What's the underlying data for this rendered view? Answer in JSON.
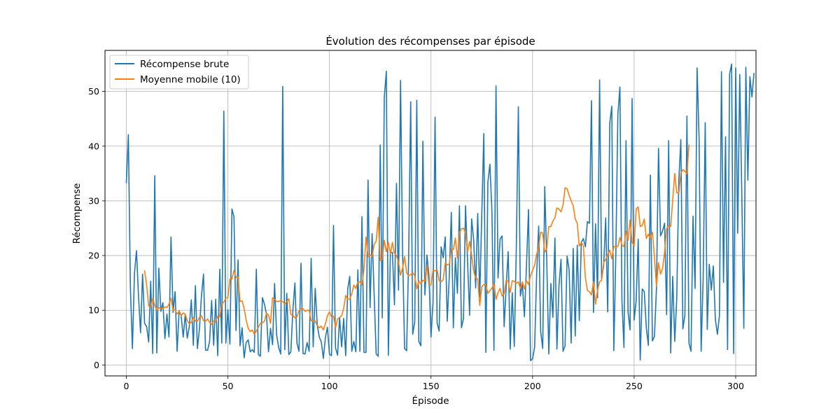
{
  "chart_data": {
    "type": "line",
    "title": "Évolution des récompenses par épisode",
    "xlabel": "Épisode",
    "ylabel": "Récompense",
    "xlim": [
      -10.5,
      310
    ],
    "ylim": [
      -2,
      57.5
    ],
    "x_ticks": [
      0,
      50,
      100,
      150,
      200,
      250,
      300
    ],
    "y_ticks": [
      0,
      10,
      20,
      30,
      40,
      50
    ],
    "grid": true,
    "legend_position": "upper left",
    "series": [
      {
        "name": "Récompense brute",
        "color": "#1f77b4",
        "x_start": 0,
        "values": [
          33.3,
          42.1,
          14.2,
          3.0,
          16.7,
          20.9,
          12.6,
          5.9,
          16.6,
          7.6,
          7.0,
          4.2,
          15.3,
          2.1,
          34.6,
          2.2,
          17.7,
          9.8,
          11.4,
          4.8,
          9.3,
          5.1,
          23.4,
          9.6,
          13.4,
          2.5,
          9.9,
          9.0,
          5.1,
          9.2,
          4.9,
          7.0,
          11.9,
          3.6,
          14.5,
          3.0,
          6.6,
          12.7,
          16.6,
          2.7,
          2.7,
          4.3,
          11.8,
          3.6,
          12.0,
          1.7,
          17.5,
          4.0,
          46.4,
          4.0,
          10.1,
          3.8,
          28.5,
          27.1,
          6.3,
          19.2,
          3.5,
          6.8,
          1.3,
          4.1,
          4.6,
          2.4,
          2.8,
          2.3,
          17.5,
          1.9,
          1.6,
          12.3,
          11.1,
          9.3,
          2.4,
          6.7,
          3.7,
          14.9,
          5.5,
          3.2,
          2.0,
          50.9,
          2.8,
          13.1,
          1.9,
          2.4,
          10.1,
          15.0,
          4.0,
          2.5,
          18.6,
          2.1,
          2.0,
          4.1,
          2.5,
          19.5,
          3.3,
          14.0,
          7.3,
          5.1,
          4.2,
          1.2,
          5.0,
          6.9,
          2.0,
          1.7,
          25.5,
          3.1,
          1.8,
          8.7,
          3.3,
          8.5,
          1.7,
          13.9,
          16.2,
          2.5,
          4.3,
          2.4,
          17.4,
          2.5,
          27.1,
          2.3,
          2.3,
          33.8,
          10.5,
          24.0,
          13.0,
          2.0,
          1.6,
          40.2,
          8.6,
          48.9,
          53.7,
          1.8,
          20.5,
          20.6,
          11.0,
          33.2,
          13.7,
          52.0,
          20.9,
          3.0,
          2.6,
          19.8,
          48.1,
          5.6,
          7.9,
          48.4,
          4.3,
          3.5,
          40.9,
          12.8,
          20.1,
          16.3,
          5.1,
          11.5,
          45.3,
          7.7,
          6.2,
          21.6,
          19.6,
          23.4,
          8.0,
          16.2,
          27.9,
          6.8,
          19.6,
          13.1,
          29.1,
          6.8,
          8.5,
          29.1,
          18.9,
          9.1,
          26.7,
          22.9,
          14.1,
          27.7,
          12.4,
          27.6,
          42.3,
          2.3,
          33.4,
          36.7,
          28.0,
          2.7,
          51.0,
          15.9,
          23.0,
          23.6,
          7.0,
          14.3,
          20.7,
          2.9,
          13.2,
          3.4,
          21.4,
          47.2,
          12.6,
          14.7,
          8.8,
          18.2,
          28.4,
          0.8,
          1.1,
          3.2,
          16.4,
          25.4,
          6.1,
          3.0,
          32.6,
          18.7,
          2.0,
          14.9,
          8.7,
          23.2,
          2.9,
          14.5,
          19.3,
          2.5,
          3.5,
          19.9,
          17.4,
          4.0,
          21.3,
          5.3,
          21.9,
          8.1,
          22.4,
          23.1,
          21.6,
          26.2,
          25.9,
          48.3,
          9.6,
          25.8,
          12.3,
          52.1,
          15.7,
          18.1,
          26.9,
          9.7,
          44.2,
          47.3,
          2.6,
          20.4,
          45.8,
          50.8,
          11.7,
          3.2,
          41.0,
          9.7,
          6.4,
          48.7,
          8.2,
          11.7,
          23.0,
          0.9,
          13.9,
          13.4,
          6.8,
          3.6,
          34.7,
          4.4,
          5.2,
          14.0,
          39.6,
          23.6,
          24.5,
          25.9,
          9.2,
          41.0,
          2.2,
          16.2,
          4.3,
          12.3,
          33.7,
          41.2,
          6.6,
          9.1,
          45.5,
          4.0,
          2.5,
          27.2,
          14.0,
          54.3,
          41.1,
          2.5,
          16.1,
          44.3,
          6.5,
          18.4,
          13.7,
          18.1,
          8.3,
          5.6,
          9.0,
          53.6,
          15.1,
          41.7,
          2.8,
          53.2,
          55.0,
          2.1,
          54.3,
          24.1,
          53.1,
          31.4,
          6.7,
          54.4,
          33.8,
          52.7,
          49.0,
          53.3
        ]
      },
      {
        "name": "Moyenne mobile (10)",
        "color": "#ff7f0e",
        "x_start": 9,
        "values": [
          17.2,
          14.6,
          10.8,
          10.5,
          12.2,
          10.9,
          10.0,
          10.5,
          10.3,
          10.3,
          10.6,
          10.5,
          11.1,
          12.2,
          10.0,
          10.1,
          9.3,
          9.8,
          9.0,
          9.5,
          9.3,
          8.1,
          7.5,
          7.8,
          8.7,
          8.0,
          8.0,
          8.7,
          9.0,
          8.1,
          8.0,
          8.4,
          7.8,
          7.4,
          8.0,
          7.9,
          8.9,
          8.8,
          11.1,
          11.5,
          12.2,
          12.3,
          15.7,
          15.7,
          17.3,
          16.0,
          16.1,
          11.6,
          11.7,
          10.3,
          8.2,
          6.7,
          6.1,
          6.4,
          5.6,
          6.2,
          6.9,
          7.6,
          7.7,
          8.0,
          9.5,
          9.1,
          7.6,
          12.3,
          12.0,
          11.6,
          11.6,
          11.8,
          11.6,
          11.1,
          11.6,
          12.1,
          9.2,
          9.1,
          8.6,
          8.8,
          9.9,
          10.3,
          10.3,
          9.8,
          10.0,
          10.0,
          8.1,
          8.0,
          8.0,
          7.2,
          6.8,
          7.1,
          6.4,
          7.5,
          9.0,
          9.7,
          8.8,
          8.9,
          6.8,
          8.4,
          8.7,
          9.0,
          10.3,
          12.7,
          12.0,
          12.1,
          13.0,
          14.6,
          14.0,
          15.2,
          15.2,
          14.6,
          17.5,
          23.4,
          19.8,
          20.1,
          19.8,
          22.0,
          22.6,
          27.0,
          19.1,
          19.3,
          22.8,
          20.7,
          22.4,
          20.3,
          22.4,
          20.4,
          20.0,
          18.8,
          16.4,
          17.7,
          19.8,
          16.8,
          16.3,
          16.5,
          16.9,
          16.3,
          13.9,
          15.4,
          14.8,
          15.5,
          15.3,
          18.2,
          14.6,
          14.6,
          17.3,
          17.2,
          17.4,
          15.4,
          15.2,
          15.6,
          18.6,
          18.3,
          18.4,
          21.2,
          21.1,
          23.2,
          19.5,
          24.2,
          24.9,
          25.0,
          24.1,
          20.7,
          22.6,
          20.1,
          17.1,
          15.9,
          15.7,
          10.9,
          14.3,
          14.7,
          14.7,
          13.1,
          13.6,
          14.0,
          14.9,
          12.0,
          13.2,
          14.0,
          12.6,
          13.0,
          15.5,
          15.3,
          13.3,
          15.4,
          15.3,
          14.9,
          15.2,
          14.0,
          15.2,
          13.9,
          15.4,
          14.7,
          16.3,
          17.3,
          18.2,
          20.2,
          21.6,
          24.3,
          24.1,
          20.6,
          21.3,
          25.3,
          25.3,
          26.3,
          26.9,
          28.7,
          28.5,
          28.0,
          29.2,
          32.4,
          32.2,
          31.0,
          30.0,
          29.1,
          26.7,
          25.9,
          21.7,
          22.4,
          21.8,
          16.0,
          13.6,
          13.4,
          12.8,
          15.2,
          11.1,
          13.7,
          15.2,
          15.5,
          18.7,
          19.3,
          20.2,
          21.0,
          19.4,
          21.7,
          21.5,
          21.7,
          23.3,
          21.9,
          21.6,
          24.4,
          22.8,
          26.5,
          22.4,
          21.7,
          28.5,
          28.9,
          25.3,
          25.5,
          26.7,
          23.1,
          23.9,
          23.1,
          24.3,
          19.7,
          14.4,
          18.7,
          16.6,
          17.6,
          20.6,
          24.9,
          25.5,
          25.3,
          30.2,
          35.0,
          31.5,
          31.4,
          35.1,
          35.7,
          35.4,
          34.9,
          40.2
        ]
      }
    ]
  }
}
